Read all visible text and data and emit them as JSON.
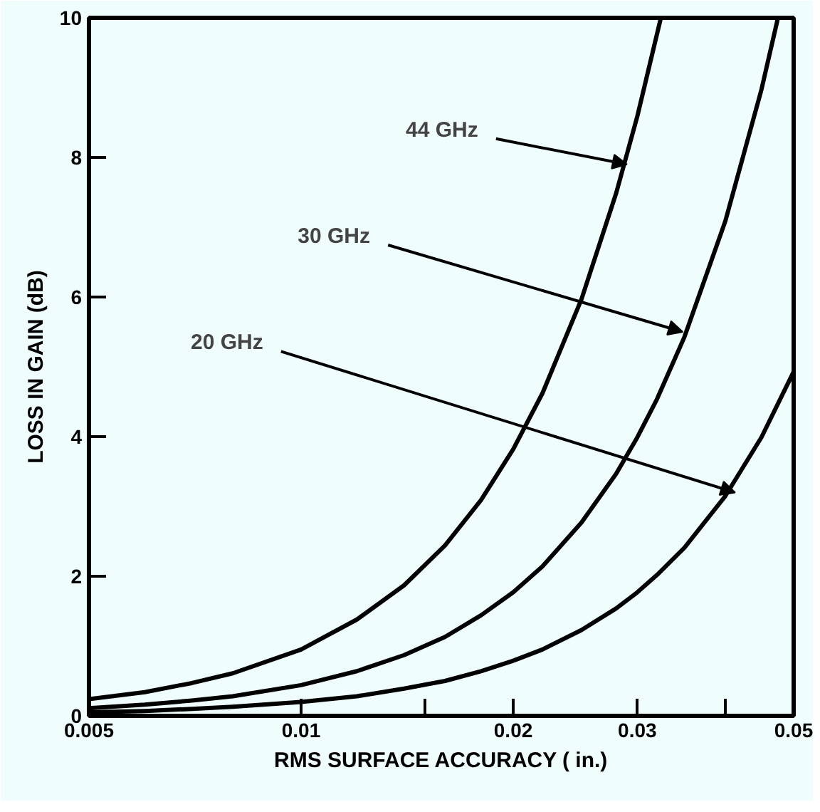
{
  "chart_data": {
    "type": "line",
    "xlabel": "RMS SURFACE ACCURACY ( in.)",
    "ylabel": "LOSS IN GAIN (dB)",
    "log": "x",
    "grid": false,
    "marker": "none",
    "line_style": "solid",
    "xlim": [
      0.005,
      0.05
    ],
    "ylim": [
      0,
      10
    ],
    "xticks": [
      0.005,
      0.01,
      {
        "value": 0.015,
        "label": null
      },
      0.02,
      0.03,
      {
        "value": 0.04,
        "label": null
      },
      0.05
    ],
    "yticks": [
      0,
      2,
      4,
      6,
      8,
      10
    ],
    "series": [
      {
        "color": "#000000",
        "x": [
          0.005,
          0.006,
          0.007,
          0.008,
          0.01,
          0.012,
          0.014,
          0.016,
          0.018,
          0.02,
          0.022,
          0.025,
          0.028,
          0.03,
          0.0324
        ],
        "values": [
          0.24,
          0.34,
          0.47,
          0.61,
          0.95,
          1.38,
          1.87,
          2.44,
          3.09,
          3.82,
          4.62,
          5.97,
          7.49,
          8.59,
          10.0
        ]
      },
      {
        "color": "#000000",
        "x": [
          0.005,
          0.006,
          0.007,
          0.008,
          0.01,
          0.012,
          0.014,
          0.016,
          0.018,
          0.02,
          0.022,
          0.025,
          0.028,
          0.03,
          0.032,
          0.035,
          0.04,
          0.045,
          0.0475
        ],
        "values": [
          0.11,
          0.16,
          0.22,
          0.28,
          0.44,
          0.64,
          0.87,
          1.13,
          1.44,
          1.77,
          2.14,
          2.77,
          3.47,
          3.99,
          4.54,
          5.43,
          7.09,
          8.97,
          10.0
        ]
      },
      {
        "color": "#000000",
        "x": [
          0.005,
          0.006,
          0.007,
          0.008,
          0.01,
          0.012,
          0.014,
          0.016,
          0.018,
          0.02,
          0.022,
          0.025,
          0.028,
          0.03,
          0.032,
          0.035,
          0.04,
          0.045,
          0.05
        ],
        "values": [
          0.05,
          0.07,
          0.1,
          0.13,
          0.2,
          0.28,
          0.39,
          0.5,
          0.64,
          0.79,
          0.95,
          1.23,
          1.54,
          1.77,
          2.02,
          2.41,
          3.15,
          3.99,
          4.93
        ]
      }
    ],
    "annotations": [
      {
        "text": "44 GHz",
        "x": 0.029,
        "y": 7.9
      },
      {
        "text": "30 GHz",
        "x": 0.0348,
        "y": 5.5
      },
      {
        "text": "20 GHz",
        "x": 0.0413,
        "y": 3.2
      }
    ]
  }
}
